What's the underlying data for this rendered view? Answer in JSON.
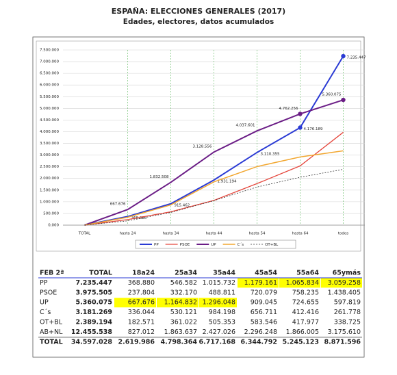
{
  "chart_data": {
    "type": "line",
    "title": "ESPAÑA: ELECCIONES GENERALES (2017)",
    "subtitle": "Edades, electores, datos acumulados",
    "categories": [
      "TOTAL",
      "hasta 24",
      "hasta 34",
      "hasta 44",
      "hasta 54",
      "hasta 64",
      "todos"
    ],
    "series": [
      {
        "name": "PP",
        "color": "#2b3bd4",
        "width": 2,
        "values": [
          0,
          368880,
          915462,
          1931194,
          3110355,
          4176189,
          7235447
        ],
        "value_labels": [
          "",
          "368.880",
          "915.462",
          "1.931.194",
          "3.110.355",
          "4.176.189",
          "7.235.447"
        ],
        "markers": [
          5,
          6
        ]
      },
      {
        "name": "PSOE",
        "color": "#e5473d",
        "width": 1.3,
        "values": [
          0,
          237804,
          569974,
          1058785,
          1778864,
          2537099,
          3975505
        ]
      },
      {
        "name": "UP",
        "color": "#6b1d86",
        "width": 2,
        "values": [
          0,
          667676,
          1832508,
          3128556,
          4037601,
          4762256,
          5360075
        ],
        "value_labels": [
          "",
          "667.676",
          "1.832.508",
          "3.128.556",
          "4.037.601",
          "4.762.256",
          "5.360.075"
        ],
        "markers": [
          5,
          6
        ]
      },
      {
        "name": "C´s",
        "color": "#f2a730",
        "width": 1.5,
        "values": [
          0,
          336044,
          866165,
          1850363,
          2507074,
          2919490,
          3181269
        ]
      },
      {
        "name": "OT+BL",
        "color": "#333333",
        "width": 0.8,
        "dash": "2,2",
        "values": [
          0,
          182571,
          543593,
          1048946,
          1632492,
          2050469,
          2389194
        ]
      }
    ],
    "ylim": [
      0,
      7500000
    ],
    "yticks": [
      {
        "value": 0,
        "label": "0,000"
      },
      {
        "value": 500000,
        "label": "500.000"
      },
      {
        "value": 1000000,
        "label": "1.000.000"
      },
      {
        "value": 1500000,
        "label": "1.500.000"
      },
      {
        "value": 2000000,
        "label": "2.000.000"
      },
      {
        "value": 2500000,
        "label": "2.500.000"
      },
      {
        "value": 3000000,
        "label": "3.000.000"
      },
      {
        "value": 3500000,
        "label": "3.500.000"
      },
      {
        "value": 4000000,
        "label": "4.000.000"
      },
      {
        "value": 4500000,
        "label": "4.500.000"
      },
      {
        "value": 5000000,
        "label": "5.000.000"
      },
      {
        "value": 5500000,
        "label": "5.500.000"
      },
      {
        "value": 6000000,
        "label": "6.000.000"
      },
      {
        "value": 6500000,
        "label": "6.500.000"
      },
      {
        "value": 7000000,
        "label": "7.000.000"
      },
      {
        "value": 7500000,
        "label": "7.500.000"
      }
    ],
    "grid": true
  },
  "table": {
    "header": [
      "FEB 2ª",
      "TOTAL",
      "18a24",
      "25a34",
      "35a44",
      "45a54",
      "55a64",
      "65ymás"
    ],
    "rows": [
      [
        "PP",
        "7.235.447",
        "368.880",
        "546.582",
        "1.015.732",
        "1.179.161",
        "1.065.834",
        "3.059.258"
      ],
      [
        "PSOE",
        "3.975.505",
        "237.804",
        "332.170",
        "488.811",
        "720.079",
        "758.235",
        "1.438.405"
      ],
      [
        "UP",
        "5.360.075",
        "667.676",
        "1.164.832",
        "1.296.048",
        "909.045",
        "724.655",
        "597.819"
      ],
      [
        "C´s",
        "3.181.269",
        "336.044",
        "530.121",
        "984.198",
        "656.711",
        "412.416",
        "261.778"
      ],
      [
        "OT+BL",
        "2.389.194",
        "182.571",
        "361.022",
        "505.353",
        "583.546",
        "417.977",
        "338.725"
      ],
      [
        "AB+NL",
        "12.455.538",
        "827.012",
        "1.863.637",
        "2.427.026",
        "2.296.248",
        "1.866.005",
        "3.175.610"
      ],
      [
        "TOTAL",
        "34.597.028",
        "2.619.986",
        "4.798.364",
        "6.717.168",
        "6.344.792",
        "5.245.123",
        "8.871.596"
      ]
    ],
    "highlight_color": "#ffff00",
    "highlights": [
      [
        0,
        5
      ],
      [
        0,
        6
      ],
      [
        0,
        7
      ],
      [
        2,
        2
      ],
      [
        2,
        3
      ],
      [
        2,
        4
      ]
    ]
  }
}
